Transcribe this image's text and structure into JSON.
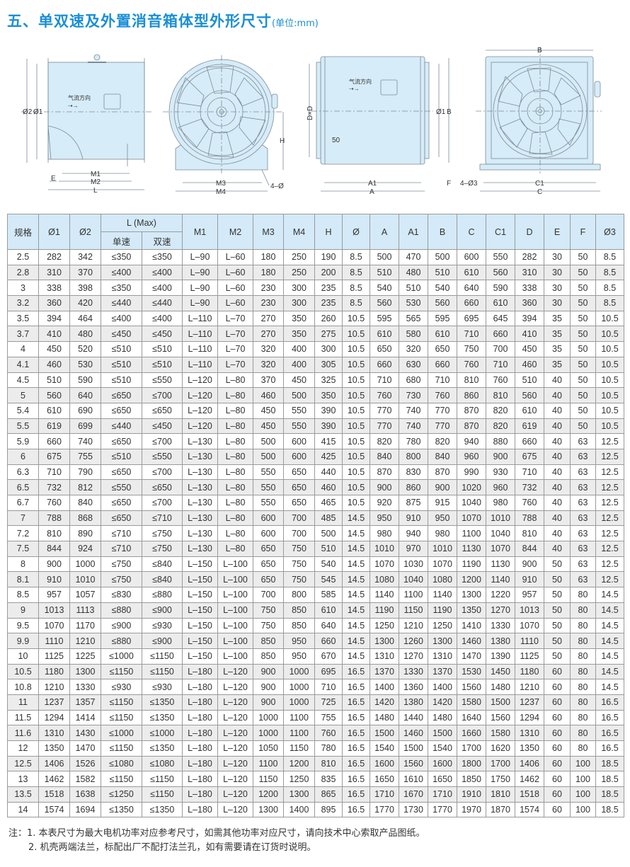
{
  "title": {
    "main": "五、单双速及外置消音箱体型外形尺寸",
    "unit": "(单位:mm)"
  },
  "drawings": {
    "airflow_label": "气流方向",
    "view1": {
      "d2": "Ø2",
      "d1": "Ø1",
      "m1": "M1",
      "m2": "M2",
      "l": "L",
      "e": "E"
    },
    "view2": {
      "h": "H",
      "m3": "M3",
      "m4": "M4",
      "holes": "4–Ø"
    },
    "view3": {
      "dxd": "D×D",
      "fifty": "50",
      "d1": "Ø1",
      "b": "B",
      "a1": "A1",
      "a": "A",
      "f": "F"
    },
    "view4": {
      "b": "B",
      "c1": "C1",
      "c": "C",
      "holes": "4–Ø3"
    }
  },
  "table": {
    "headers": [
      "规格",
      "Ø1",
      "Ø2",
      "L (Max)",
      "M1",
      "M2",
      "M3",
      "M4",
      "H",
      "Ø",
      "A",
      "A1",
      "B",
      "C",
      "C1",
      "D",
      "E",
      "F",
      "Ø3"
    ],
    "subheaders": [
      "单速",
      "双速"
    ],
    "rows": [
      [
        "2.5",
        "282",
        "342",
        "≤350",
        "≤350",
        "L–90",
        "L–60",
        "180",
        "250",
        "190",
        "8.5",
        "500",
        "470",
        "500",
        "600",
        "550",
        "282",
        "30",
        "50",
        "8.5"
      ],
      [
        "2.8",
        "310",
        "370",
        "≤400",
        "≤400",
        "L–90",
        "L–60",
        "180",
        "250",
        "200",
        "8.5",
        "510",
        "480",
        "510",
        "610",
        "560",
        "310",
        "30",
        "50",
        "8.5"
      ],
      [
        "3",
        "338",
        "398",
        "≤350",
        "≤400",
        "L–90",
        "L–60",
        "230",
        "300",
        "235",
        "8.5",
        "540",
        "510",
        "540",
        "640",
        "590",
        "338",
        "30",
        "50",
        "8.5"
      ],
      [
        "3.2",
        "360",
        "420",
        "≤440",
        "≤440",
        "L–90",
        "L–60",
        "230",
        "300",
        "235",
        "8.5",
        "560",
        "530",
        "560",
        "660",
        "610",
        "360",
        "30",
        "50",
        "8.5"
      ],
      [
        "3.5",
        "394",
        "464",
        "≤400",
        "≤400",
        "L–110",
        "L–70",
        "270",
        "350",
        "260",
        "10.5",
        "595",
        "565",
        "595",
        "695",
        "645",
        "394",
        "35",
        "50",
        "10.5"
      ],
      [
        "3.7",
        "410",
        "480",
        "≤450",
        "≤450",
        "L–110",
        "L–70",
        "270",
        "350",
        "275",
        "10.5",
        "610",
        "580",
        "610",
        "710",
        "660",
        "410",
        "35",
        "50",
        "10.5"
      ],
      [
        "4",
        "450",
        "520",
        "≤510",
        "≤510",
        "L–110",
        "L–70",
        "320",
        "400",
        "300",
        "10.5",
        "650",
        "320",
        "650",
        "750",
        "700",
        "450",
        "35",
        "50",
        "10.5"
      ],
      [
        "4.1",
        "460",
        "530",
        "≤510",
        "≤510",
        "L–110",
        "L–70",
        "320",
        "400",
        "305",
        "10.5",
        "660",
        "630",
        "660",
        "760",
        "710",
        "460",
        "35",
        "50",
        "10.5"
      ],
      [
        "4.5",
        "510",
        "590",
        "≤510",
        "≤550",
        "L–120",
        "L–80",
        "370",
        "450",
        "325",
        "10.5",
        "710",
        "680",
        "710",
        "810",
        "760",
        "510",
        "40",
        "50",
        "10.5"
      ],
      [
        "5",
        "560",
        "640",
        "≤650",
        "≤700",
        "L–120",
        "L–80",
        "460",
        "500",
        "350",
        "10.5",
        "760",
        "730",
        "760",
        "860",
        "810",
        "560",
        "40",
        "50",
        "10.5"
      ],
      [
        "5.4",
        "610",
        "690",
        "≤650",
        "≤650",
        "L–120",
        "L–80",
        "450",
        "550",
        "390",
        "10.5",
        "770",
        "740",
        "770",
        "870",
        "820",
        "610",
        "40",
        "50",
        "10.5"
      ],
      [
        "5.5",
        "619",
        "699",
        "≤440",
        "≤450",
        "L–120",
        "L–80",
        "450",
        "550",
        "390",
        "10.5",
        "770",
        "740",
        "770",
        "870",
        "820",
        "619",
        "40",
        "50",
        "10.5"
      ],
      [
        "5.9",
        "660",
        "740",
        "≤650",
        "≤700",
        "L–130",
        "L–80",
        "500",
        "600",
        "415",
        "10.5",
        "820",
        "780",
        "820",
        "940",
        "880",
        "660",
        "40",
        "63",
        "12.5"
      ],
      [
        "6",
        "675",
        "755",
        "≤510",
        "≤550",
        "L–130",
        "L–80",
        "500",
        "600",
        "425",
        "10.5",
        "840",
        "800",
        "840",
        "960",
        "900",
        "675",
        "40",
        "63",
        "12.5"
      ],
      [
        "6.3",
        "710",
        "790",
        "≤650",
        "≤700",
        "L–130",
        "L–80",
        "550",
        "650",
        "440",
        "10.5",
        "870",
        "830",
        "870",
        "990",
        "930",
        "710",
        "40",
        "63",
        "12.5"
      ],
      [
        "6.5",
        "732",
        "812",
        "≤550",
        "≤650",
        "L–130",
        "L–80",
        "550",
        "650",
        "460",
        "10.5",
        "900",
        "860",
        "900",
        "1020",
        "960",
        "732",
        "40",
        "63",
        "12.5"
      ],
      [
        "6.7",
        "760",
        "840",
        "≤650",
        "≤700",
        "L–130",
        "L–80",
        "550",
        "650",
        "465",
        "10.5",
        "920",
        "875",
        "915",
        "1040",
        "980",
        "760",
        "40",
        "63",
        "12.5"
      ],
      [
        "7",
        "788",
        "868",
        "≤650",
        "≤710",
        "L–130",
        "L–80",
        "600",
        "700",
        "485",
        "14.5",
        "950",
        "910",
        "950",
        "1070",
        "1010",
        "788",
        "40",
        "63",
        "12.5"
      ],
      [
        "7.2",
        "810",
        "890",
        "≤710",
        "≤750",
        "L–130",
        "L–80",
        "600",
        "700",
        "500",
        "14.5",
        "980",
        "940",
        "980",
        "1100",
        "1040",
        "810",
        "40",
        "63",
        "12.5"
      ],
      [
        "7.5",
        "844",
        "924",
        "≤710",
        "≤750",
        "L–130",
        "L–80",
        "650",
        "750",
        "510",
        "14.5",
        "1010",
        "970",
        "1010",
        "1130",
        "1070",
        "844",
        "40",
        "63",
        "12.5"
      ],
      [
        "8",
        "900",
        "1000",
        "≤750",
        "≤840",
        "L–150",
        "L–100",
        "650",
        "750",
        "540",
        "14.5",
        "1070",
        "1030",
        "1070",
        "1190",
        "1130",
        "900",
        "50",
        "63",
        "12.5"
      ],
      [
        "8.1",
        "910",
        "1010",
        "≤750",
        "≤840",
        "L–150",
        "L–100",
        "650",
        "750",
        "545",
        "14.5",
        "1080",
        "1040",
        "1080",
        "1200",
        "1140",
        "910",
        "50",
        "63",
        "12.5"
      ],
      [
        "8.5",
        "957",
        "1057",
        "≤830",
        "≤880",
        "L–150",
        "L–100",
        "700",
        "800",
        "585",
        "14.5",
        "1140",
        "1100",
        "1140",
        "1300",
        "1220",
        "957",
        "50",
        "80",
        "14.5"
      ],
      [
        "9",
        "1013",
        "1113",
        "≤880",
        "≤900",
        "L–150",
        "L–100",
        "750",
        "850",
        "610",
        "14.5",
        "1190",
        "1150",
        "1190",
        "1350",
        "1270",
        "1013",
        "50",
        "80",
        "14.5"
      ],
      [
        "9.5",
        "1070",
        "1170",
        "≤900",
        "≤930",
        "L–150",
        "L–100",
        "750",
        "850",
        "640",
        "14.5",
        "1250",
        "1210",
        "1250",
        "1410",
        "1330",
        "1070",
        "50",
        "80",
        "14.5"
      ],
      [
        "9.9",
        "1110",
        "1210",
        "≤880",
        "≤900",
        "L–150",
        "L–100",
        "850",
        "950",
        "660",
        "14.5",
        "1300",
        "1260",
        "1300",
        "1460",
        "1380",
        "1110",
        "50",
        "80",
        "14.5"
      ],
      [
        "10",
        "1125",
        "1225",
        "≤1000",
        "≤1150",
        "L–150",
        "L–100",
        "850",
        "950",
        "670",
        "14.5",
        "1310",
        "1270",
        "1310",
        "1470",
        "1390",
        "1125",
        "50",
        "80",
        "14.5"
      ],
      [
        "10.5",
        "1180",
        "1300",
        "≤1150",
        "≤1150",
        "L–180",
        "L–120",
        "900",
        "1000",
        "695",
        "16.5",
        "1370",
        "1330",
        "1370",
        "1530",
        "1450",
        "1180",
        "60",
        "80",
        "14.5"
      ],
      [
        "10.8",
        "1210",
        "1330",
        "≤930",
        "≤930",
        "L–180",
        "L–120",
        "900",
        "1000",
        "710",
        "16.5",
        "1400",
        "1360",
        "1400",
        "1560",
        "1480",
        "1210",
        "60",
        "80",
        "14.5"
      ],
      [
        "11",
        "1237",
        "1357",
        "≤1150",
        "≤1350",
        "L–180",
        "L–120",
        "900",
        "1000",
        "725",
        "16.5",
        "1420",
        "1380",
        "1420",
        "1580",
        "1500",
        "1237",
        "60",
        "80",
        "16.5"
      ],
      [
        "11.5",
        "1294",
        "1414",
        "≤1150",
        "≤1350",
        "L–180",
        "L–120",
        "1000",
        "1100",
        "755",
        "16.5",
        "1480",
        "1440",
        "1480",
        "1640",
        "1560",
        "1294",
        "60",
        "80",
        "16.5"
      ],
      [
        "11.6",
        "1310",
        "1430",
        "≤1000",
        "≤1000",
        "L–180",
        "L–120",
        "1000",
        "1100",
        "760",
        "16.5",
        "1500",
        "1460",
        "1500",
        "1660",
        "1580",
        "1310",
        "60",
        "80",
        "16.5"
      ],
      [
        "12",
        "1350",
        "1470",
        "≤1150",
        "≤1350",
        "L–180",
        "L–120",
        "1050",
        "1150",
        "780",
        "16.5",
        "1540",
        "1500",
        "1540",
        "1700",
        "1620",
        "1350",
        "60",
        "80",
        "16.5"
      ],
      [
        "12.5",
        "1406",
        "1526",
        "≤1080",
        "≤1080",
        "L–180",
        "L–120",
        "1100",
        "1200",
        "810",
        "16.5",
        "1600",
        "1560",
        "1600",
        "1800",
        "1700",
        "1406",
        "60",
        "100",
        "18.5"
      ],
      [
        "13",
        "1462",
        "1582",
        "≤1150",
        "≤1150",
        "L–180",
        "L–120",
        "1150",
        "1250",
        "835",
        "16.5",
        "1650",
        "1610",
        "1650",
        "1850",
        "1750",
        "1462",
        "60",
        "100",
        "18.5"
      ],
      [
        "13.5",
        "1518",
        "1638",
        "≤1250",
        "≤1150",
        "L–180",
        "L–120",
        "1200",
        "1300",
        "865",
        "16.5",
        "1710",
        "1670",
        "1710",
        "1910",
        "1810",
        "1518",
        "60",
        "100",
        "18.5"
      ],
      [
        "14",
        "1574",
        "1694",
        "≤1350",
        "≤1350",
        "L–180",
        "L–120",
        "1300",
        "1400",
        "895",
        "16.5",
        "1770",
        "1730",
        "1770",
        "1970",
        "1870",
        "1574",
        "60",
        "100",
        "18.5"
      ]
    ]
  },
  "notes": [
    "注：1. 本表尺寸为最大电机功率对应参考尺寸，如需其他功率对应尺寸，请向技术中心索取产品图纸。",
    "2. 机壳两端法兰，标配出厂不配打法兰孔，如有需要请在订货时说明。"
  ],
  "colors": {
    "title": "#1b8fd6",
    "header_bg": "#d4eaf8",
    "body_fill": "#d6ecf8",
    "alt_row": "#ececec"
  }
}
